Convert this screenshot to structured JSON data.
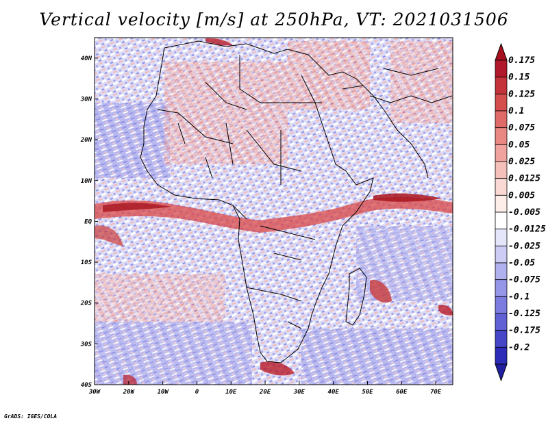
{
  "title": "Vertical velocity [m/s] at 250hPa, VT: 2021031506",
  "credit": "GrADS: IGES/COLA",
  "map": {
    "region": "Africa",
    "lon_range": [
      -30,
      75
    ],
    "lat_range": [
      -40,
      45
    ],
    "lon_ticks": [
      {
        "value": -30,
        "label": "30W"
      },
      {
        "value": -20,
        "label": "20W"
      },
      {
        "value": -10,
        "label": "10W"
      },
      {
        "value": 0,
        "label": "0"
      },
      {
        "value": 10,
        "label": "10E"
      },
      {
        "value": 20,
        "label": "20E"
      },
      {
        "value": 30,
        "label": "30E"
      },
      {
        "value": 40,
        "label": "40E"
      },
      {
        "value": 50,
        "label": "50E"
      },
      {
        "value": 60,
        "label": "60E"
      },
      {
        "value": 70,
        "label": "70E"
      }
    ],
    "lat_ticks": [
      {
        "value": 40,
        "label": "40N"
      },
      {
        "value": 30,
        "label": "30N"
      },
      {
        "value": 20,
        "label": "20N"
      },
      {
        "value": 10,
        "label": "10N"
      },
      {
        "value": 0,
        "label": "EQ"
      },
      {
        "value": -10,
        "label": "10S"
      },
      {
        "value": -20,
        "label": "20S"
      },
      {
        "value": -30,
        "label": "30S"
      },
      {
        "value": -40,
        "label": "40S"
      }
    ]
  },
  "colorbar": {
    "levels": [
      {
        "label": "0.175",
        "color": "#b2182b"
      },
      {
        "label": "0.15",
        "color": "#c4323a"
      },
      {
        "label": "0.125",
        "color": "#d44e4e"
      },
      {
        "label": "0.1",
        "color": "#e06a68"
      },
      {
        "label": "0.075",
        "color": "#e98783"
      },
      {
        "label": "0.05",
        "color": "#f0a39e"
      },
      {
        "label": "0.025",
        "color": "#f6c0ba"
      },
      {
        "label": "0.0125",
        "color": "#fad9d4"
      },
      {
        "label": "0.005",
        "color": "#fdeeea"
      },
      {
        "label": "-0.005",
        "color": "#ffffff"
      },
      {
        "label": "-0.0125",
        "color": "#e6e6fb"
      },
      {
        "label": "-0.025",
        "color": "#ccccf5"
      },
      {
        "label": "-0.05",
        "color": "#b1b1ef"
      },
      {
        "label": "-0.075",
        "color": "#9696e8"
      },
      {
        "label": "-0.1",
        "color": "#7b7be0"
      },
      {
        "label": "-0.125",
        "color": "#6161d6"
      },
      {
        "label": "-0.175",
        "color": "#4646c9"
      },
      {
        "label": "-0.2",
        "color": "#2c2cb8"
      }
    ],
    "top_color": "#a50f1e",
    "bottom_color": "#1f1fa0"
  },
  "colors": {
    "positive": "#e45d5d",
    "negative": "#7777dd",
    "strong_positive": "#b81c28",
    "coast": "#000000"
  }
}
